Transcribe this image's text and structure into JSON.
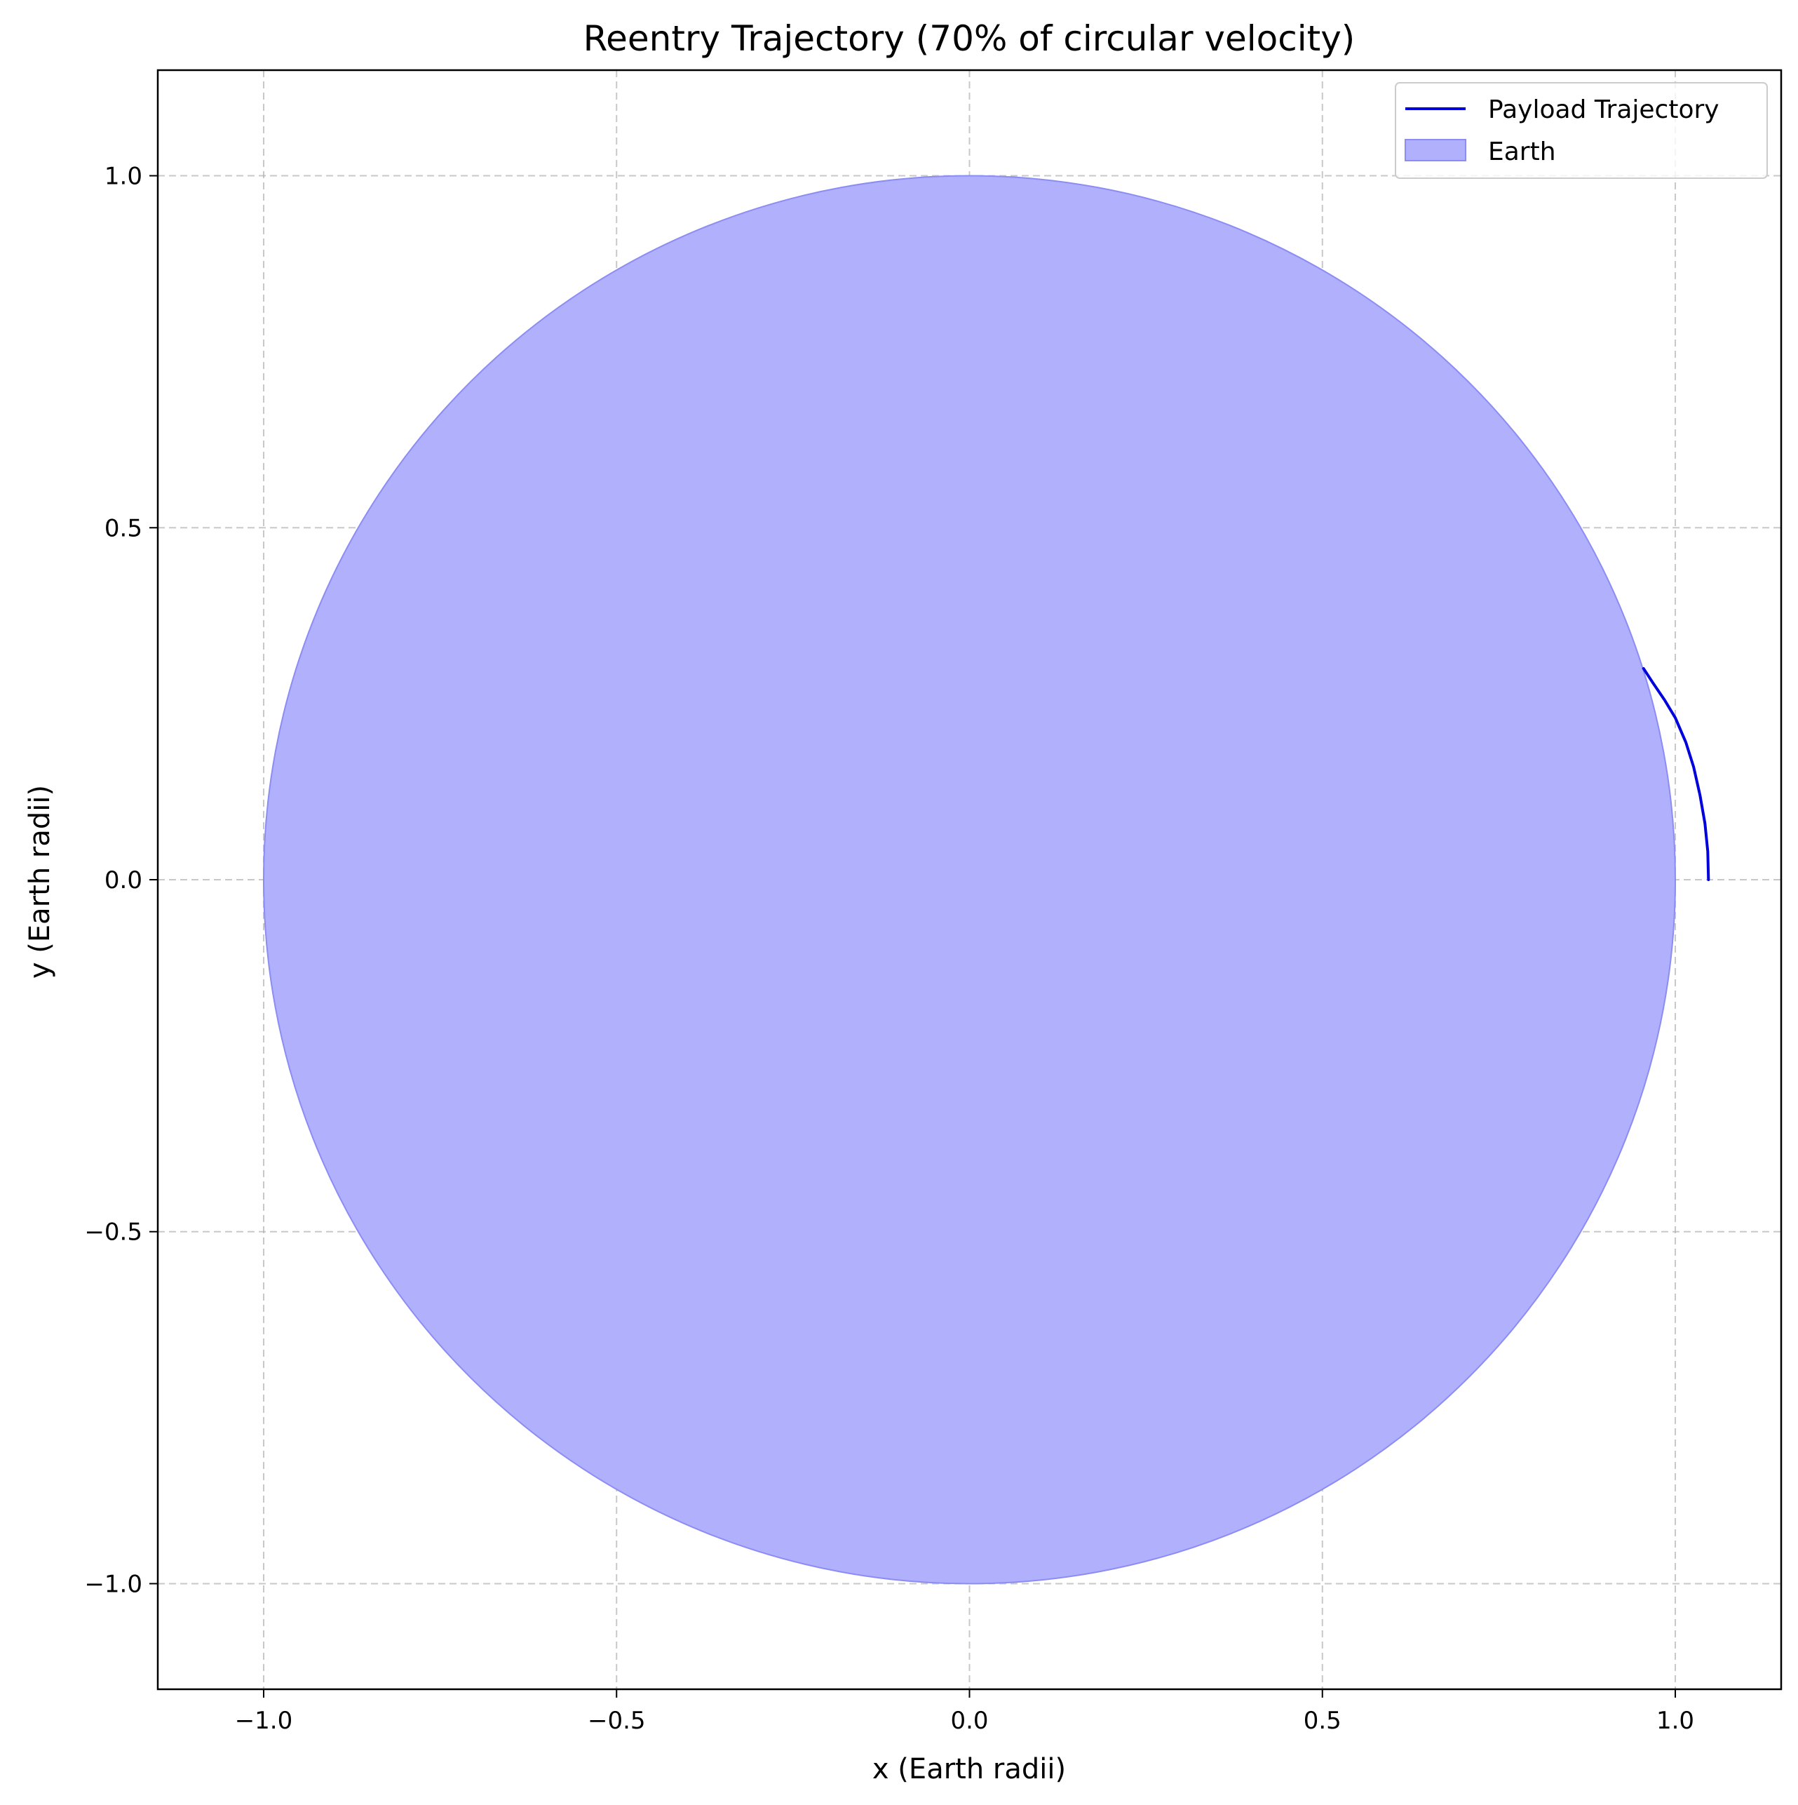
{
  "chart_data": {
    "type": "line",
    "title": "Reentry Trajectory (70% of circular velocity)",
    "xlabel": "x (Earth radii)",
    "ylabel": "y (Earth radii)",
    "xlim": [
      -1.15,
      1.15
    ],
    "ylim": [
      -1.15,
      1.15
    ],
    "x_ticks": [
      -1.0,
      -0.5,
      0.0,
      0.5,
      1.0
    ],
    "y_ticks": [
      -1.0,
      -0.5,
      0.0,
      0.5,
      1.0
    ],
    "x_tick_labels": [
      "−1.0",
      "−0.5",
      "0.0",
      "0.5",
      "1.0"
    ],
    "y_tick_labels": [
      "−1.0",
      "−0.5",
      "0.0",
      "0.5",
      "1.0"
    ],
    "grid": true,
    "legend_position": "top-right",
    "series": [
      {
        "name": "Payload Trajectory",
        "color": "#0000dd",
        "x": [
          1.047,
          1.046,
          1.042,
          1.035,
          1.026,
          1.015,
          1.0,
          0.985,
          0.968,
          0.955
        ],
        "y": [
          0.0,
          0.04,
          0.08,
          0.12,
          0.16,
          0.195,
          0.23,
          0.255,
          0.28,
          0.3
        ]
      }
    ],
    "shapes": [
      {
        "name": "Earth",
        "type": "circle",
        "center": [
          0,
          0
        ],
        "radius": 1.0,
        "fill": "#b0b0fc",
        "edge": "#8c8cf5"
      }
    ]
  }
}
